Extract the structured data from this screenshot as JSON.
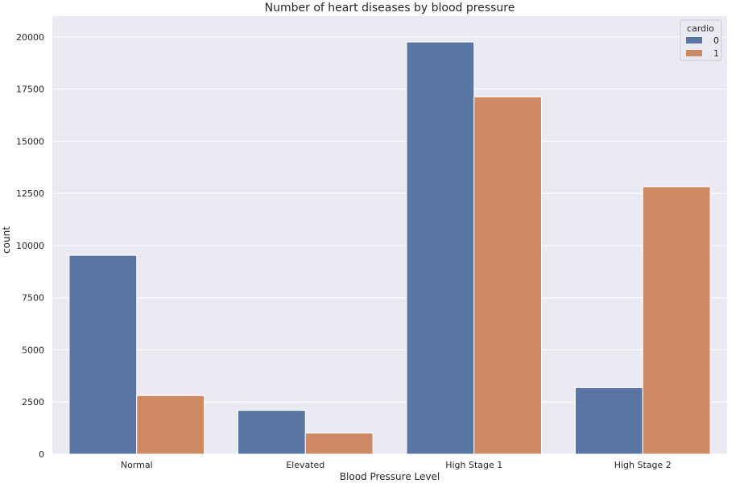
{
  "chart_data": {
    "type": "bar",
    "title": "Number of heart diseases by blood pressure",
    "xlabel": "Blood Pressure Level",
    "ylabel": "count",
    "categories": [
      "Normal",
      "Elevated",
      "High Stage 1",
      "High Stage 2"
    ],
    "series": [
      {
        "name": "0",
        "values": [
          9530,
          2100,
          19760,
          3190
        ],
        "color": "#5875a4"
      },
      {
        "name": "1",
        "values": [
          2810,
          1010,
          17130,
          12820
        ],
        "color": "#cc8963"
      }
    ],
    "ylim": [
      0,
      21000
    ],
    "yticks": [
      0,
      2500,
      5000,
      7500,
      10000,
      12500,
      15000,
      17500,
      20000
    ],
    "ytick_labels": [
      "0",
      "2500",
      "5000",
      "7500",
      "10000",
      "12500",
      "15000",
      "17500",
      "20000"
    ],
    "legend": {
      "title": "cardio",
      "placement": "top-right"
    },
    "grid": true,
    "colors": {
      "background": "#eaeaf2",
      "grid": "#ffffff"
    }
  }
}
